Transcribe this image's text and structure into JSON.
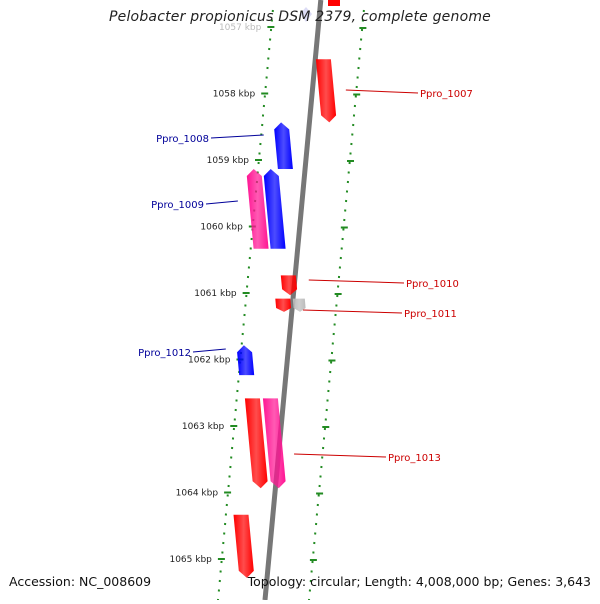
{
  "title": "Pelobacter propionicus DSM 2379, complete genome",
  "footer": {
    "accession": "Accession: NC_008609",
    "topology": "Topology: circular; Length: 4,008,000 bp; Genes: 3,643"
  },
  "colors": {
    "forward_cds": "#ff0000",
    "reverse_cds": "#0000ff",
    "magenta_cds": "#ff1493",
    "other_feature": "#bbbbbb",
    "scale": "#228b22",
    "backbone": "#777777",
    "forward_label": "#cc0000",
    "reverse_label": "#000099"
  },
  "scale_labels": [
    {
      "text": "1057 kbp",
      "kbp": 1057
    },
    {
      "text": "1058 kbp",
      "kbp": 1058
    },
    {
      "text": "1059 kbp",
      "kbp": 1059
    },
    {
      "text": "1060 kbp",
      "kbp": 1060
    },
    {
      "text": "1061 kbp",
      "kbp": 1061
    },
    {
      "text": "1062 kbp",
      "kbp": 1062
    },
    {
      "text": "1063 kbp",
      "kbp": 1063
    },
    {
      "text": "1064 kbp",
      "kbp": 1064
    },
    {
      "text": "1065 kbp",
      "kbp": 1065
    }
  ],
  "genes": [
    {
      "name": "Ppro_1007",
      "strand": "+",
      "start_kbp": 1057.5,
      "end_kbp": 1058.45,
      "color": "forward",
      "labeled": true
    },
    {
      "name": "Ppro_1008",
      "strand": "-",
      "start_kbp": 1058.45,
      "end_kbp": 1059.15,
      "color": "reverse",
      "labeled": true
    },
    {
      "name": "",
      "strand": "-",
      "start_kbp": 1059.15,
      "end_kbp": 1060.35,
      "color": "reverse",
      "labeled": false
    },
    {
      "name": "Ppro_1009",
      "strand": "-",
      "start_kbp": 1059.15,
      "end_kbp": 1060.35,
      "color": "magenta",
      "labeled": true
    },
    {
      "name": "Ppro_1010",
      "strand": "+",
      "start_kbp": 1060.75,
      "end_kbp": 1061.05,
      "color": "forward",
      "labeled": true
    },
    {
      "name": "Ppro_1011",
      "strand": "+",
      "start_kbp": 1061.1,
      "end_kbp": 1061.3,
      "color": "forward",
      "labeled": true
    },
    {
      "name": "",
      "strand": "+",
      "start_kbp": 1061.1,
      "end_kbp": 1061.3,
      "color": "other",
      "labeled": false
    },
    {
      "name": "Ppro_1012",
      "strand": "-",
      "start_kbp": 1061.8,
      "end_kbp": 1062.25,
      "color": "reverse",
      "labeled": true
    },
    {
      "name": "Ppro_1013",
      "strand": "+",
      "start_kbp": 1062.6,
      "end_kbp": 1063.95,
      "color": "forward",
      "labeled": false
    },
    {
      "name": "Ppro_1013",
      "strand": "+",
      "start_kbp": 1062.6,
      "end_kbp": 1063.95,
      "color": "magenta",
      "labeled": true
    },
    {
      "name": "",
      "strand": "+",
      "start_kbp": 1064.35,
      "end_kbp": 1065.3,
      "color": "forward",
      "labeled": false
    }
  ]
}
